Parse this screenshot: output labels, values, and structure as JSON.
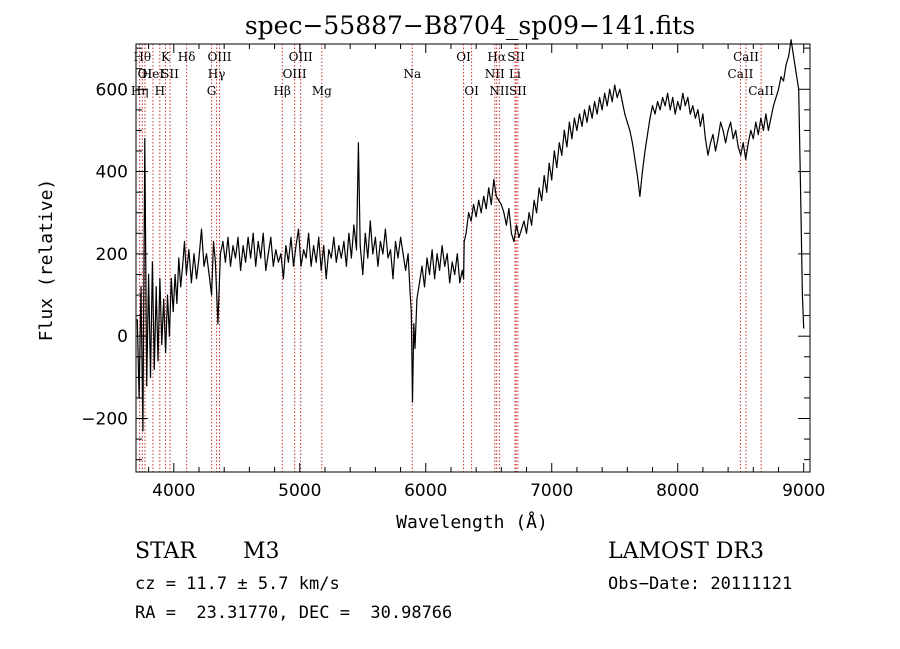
{
  "chart_data": {
    "type": "line",
    "title": "spec−55887−B8704_sp09−141.fits",
    "xlabel": "Wavelength (Å)",
    "ylabel": "Flux (relative)",
    "xlim": [
      3700,
      9050
    ],
    "ylim": [
      -330,
      710
    ],
    "x_ticks": [
      4000,
      5000,
      6000,
      7000,
      8000,
      9000
    ],
    "x_tick_labels": [
      "4000",
      "5000",
      "6000",
      "7000",
      "8000",
      "9000"
    ],
    "y_ticks": [
      -200,
      0,
      200,
      400,
      600
    ],
    "y_tick_labels": [
      "−200",
      "0",
      "200",
      "400",
      "600"
    ],
    "grid": false,
    "series": [
      {
        "name": "flux",
        "color": "#000000",
        "points": [
          [
            3710,
            40
          ],
          [
            3725,
            -150
          ],
          [
            3740,
            120
          ],
          [
            3755,
            -230
          ],
          [
            3770,
            480
          ],
          [
            3785,
            -120
          ],
          [
            3800,
            150
          ],
          [
            3815,
            -100
          ],
          [
            3830,
            180
          ],
          [
            3845,
            -80
          ],
          [
            3860,
            120
          ],
          [
            3875,
            -60
          ],
          [
            3890,
            140
          ],
          [
            3905,
            -20
          ],
          [
            3920,
            90
          ],
          [
            3935,
            -40
          ],
          [
            3950,
            100
          ],
          [
            3965,
            0
          ],
          [
            3980,
            140
          ],
          [
            3995,
            60
          ],
          [
            4010,
            150
          ],
          [
            4025,
            80
          ],
          [
            4040,
            190
          ],
          [
            4055,
            120
          ],
          [
            4070,
            170
          ],
          [
            4085,
            230
          ],
          [
            4100,
            150
          ],
          [
            4120,
            210
          ],
          [
            4140,
            130
          ],
          [
            4160,
            200
          ],
          [
            4180,
            140
          ],
          [
            4200,
            190
          ],
          [
            4220,
            260
          ],
          [
            4240,
            170
          ],
          [
            4260,
            200
          ],
          [
            4280,
            150
          ],
          [
            4300,
            100
          ],
          [
            4315,
            230
          ],
          [
            4330,
            180
          ],
          [
            4350,
            30
          ],
          [
            4370,
            200
          ],
          [
            4390,
            230
          ],
          [
            4410,
            180
          ],
          [
            4430,
            240
          ],
          [
            4450,
            170
          ],
          [
            4470,
            220
          ],
          [
            4490,
            190
          ],
          [
            4510,
            240
          ],
          [
            4530,
            160
          ],
          [
            4550,
            220
          ],
          [
            4570,
            180
          ],
          [
            4590,
            240
          ],
          [
            4610,
            190
          ],
          [
            4630,
            250
          ],
          [
            4650,
            170
          ],
          [
            4670,
            230
          ],
          [
            4690,
            190
          ],
          [
            4710,
            250
          ],
          [
            4730,
            160
          ],
          [
            4750,
            200
          ],
          [
            4770,
            240
          ],
          [
            4790,
            170
          ],
          [
            4810,
            210
          ],
          [
            4830,
            180
          ],
          [
            4850,
            200
          ],
          [
            4870,
            140
          ],
          [
            4890,
            220
          ],
          [
            4910,
            180
          ],
          [
            4930,
            240
          ],
          [
            4950,
            170
          ],
          [
            4970,
            220
          ],
          [
            4990,
            260
          ],
          [
            5010,
            170
          ],
          [
            5030,
            210
          ],
          [
            5050,
            190
          ],
          [
            5070,
            250
          ],
          [
            5090,
            170
          ],
          [
            5110,
            220
          ],
          [
            5130,
            180
          ],
          [
            5150,
            240
          ],
          [
            5170,
            160
          ],
          [
            5190,
            220
          ],
          [
            5210,
            140
          ],
          [
            5230,
            210
          ],
          [
            5250,
            190
          ],
          [
            5270,
            240
          ],
          [
            5290,
            180
          ],
          [
            5310,
            220
          ],
          [
            5330,
            190
          ],
          [
            5350,
            230
          ],
          [
            5370,
            170
          ],
          [
            5390,
            250
          ],
          [
            5410,
            190
          ],
          [
            5430,
            270
          ],
          [
            5450,
            210
          ],
          [
            5465,
            470
          ],
          [
            5480,
            220
          ],
          [
            5500,
            150
          ],
          [
            5520,
            250
          ],
          [
            5540,
            190
          ],
          [
            5560,
            280
          ],
          [
            5580,
            200
          ],
          [
            5600,
            240
          ],
          [
            5620,
            170
          ],
          [
            5640,
            230
          ],
          [
            5660,
            200
          ],
          [
            5680,
            260
          ],
          [
            5700,
            190
          ],
          [
            5720,
            210
          ],
          [
            5740,
            140
          ],
          [
            5760,
            230
          ],
          [
            5780,
            190
          ],
          [
            5800,
            240
          ],
          [
            5820,
            200
          ],
          [
            5840,
            160
          ],
          [
            5860,
            200
          ],
          [
            5875,
            110
          ],
          [
            5885,
            60
          ],
          [
            5895,
            -160
          ],
          [
            5905,
            30
          ],
          [
            5915,
            -30
          ],
          [
            5930,
            90
          ],
          [
            5950,
            130
          ],
          [
            5970,
            170
          ],
          [
            5990,
            120
          ],
          [
            6010,
            190
          ],
          [
            6030,
            150
          ],
          [
            6050,
            210
          ],
          [
            6070,
            140
          ],
          [
            6090,
            200
          ],
          [
            6110,
            160
          ],
          [
            6130,
            220
          ],
          [
            6150,
            170
          ],
          [
            6170,
            200
          ],
          [
            6190,
            130
          ],
          [
            6210,
            180
          ],
          [
            6230,
            150
          ],
          [
            6250,
            200
          ],
          [
            6270,
            130
          ],
          [
            6290,
            160
          ],
          [
            6300,
            140
          ],
          [
            6305,
            230
          ],
          [
            6320,
            250
          ],
          [
            6340,
            300
          ],
          [
            6360,
            280
          ],
          [
            6380,
            320
          ],
          [
            6400,
            290
          ],
          [
            6420,
            330
          ],
          [
            6440,
            300
          ],
          [
            6460,
            340
          ],
          [
            6480,
            310
          ],
          [
            6500,
            360
          ],
          [
            6520,
            320
          ],
          [
            6540,
            380
          ],
          [
            6560,
            340
          ],
          [
            6580,
            330
          ],
          [
            6600,
            320
          ],
          [
            6620,
            300
          ],
          [
            6640,
            270
          ],
          [
            6660,
            310
          ],
          [
            6680,
            250
          ],
          [
            6700,
            230
          ],
          [
            6720,
            270
          ],
          [
            6740,
            240
          ],
          [
            6760,
            260
          ],
          [
            6780,
            280
          ],
          [
            6800,
            250
          ],
          [
            6820,
            300
          ],
          [
            6840,
            270
          ],
          [
            6860,
            330
          ],
          [
            6880,
            300
          ],
          [
            6900,
            360
          ],
          [
            6920,
            330
          ],
          [
            6940,
            390
          ],
          [
            6960,
            350
          ],
          [
            6980,
            420
          ],
          [
            7000,
            380
          ],
          [
            7020,
            450
          ],
          [
            7040,
            410
          ],
          [
            7060,
            470
          ],
          [
            7080,
            440
          ],
          [
            7100,
            500
          ],
          [
            7120,
            460
          ],
          [
            7140,
            520
          ],
          [
            7160,
            480
          ],
          [
            7180,
            530
          ],
          [
            7200,
            500
          ],
          [
            7220,
            540
          ],
          [
            7240,
            510
          ],
          [
            7260,
            550
          ],
          [
            7280,
            520
          ],
          [
            7300,
            560
          ],
          [
            7320,
            530
          ],
          [
            7340,
            570
          ],
          [
            7360,
            540
          ],
          [
            7380,
            580
          ],
          [
            7400,
            550
          ],
          [
            7420,
            590
          ],
          [
            7440,
            560
          ],
          [
            7460,
            600
          ],
          [
            7480,
            570
          ],
          [
            7500,
            610
          ],
          [
            7520,
            580
          ],
          [
            7540,
            600
          ],
          [
            7560,
            570
          ],
          [
            7580,
            540
          ],
          [
            7600,
            520
          ],
          [
            7620,
            500
          ],
          [
            7640,
            470
          ],
          [
            7660,
            430
          ],
          [
            7680,
            390
          ],
          [
            7700,
            340
          ],
          [
            7720,
            400
          ],
          [
            7740,
            450
          ],
          [
            7760,
            490
          ],
          [
            7780,
            530
          ],
          [
            7800,
            560
          ],
          [
            7820,
            540
          ],
          [
            7840,
            570
          ],
          [
            7860,
            550
          ],
          [
            7880,
            580
          ],
          [
            7900,
            560
          ],
          [
            7920,
            590
          ],
          [
            7940,
            550
          ],
          [
            7960,
            580
          ],
          [
            7980,
            540
          ],
          [
            8000,
            570
          ],
          [
            8020,
            550
          ],
          [
            8040,
            590
          ],
          [
            8060,
            560
          ],
          [
            8080,
            580
          ],
          [
            8100,
            540
          ],
          [
            8120,
            560
          ],
          [
            8140,
            530
          ],
          [
            8160,
            550
          ],
          [
            8180,
            510
          ],
          [
            8200,
            540
          ],
          [
            8220,
            480
          ],
          [
            8240,
            440
          ],
          [
            8260,
            470
          ],
          [
            8280,
            490
          ],
          [
            8300,
            450
          ],
          [
            8320,
            480
          ],
          [
            8340,
            520
          ],
          [
            8360,
            500
          ],
          [
            8380,
            470
          ],
          [
            8400,
            500
          ],
          [
            8420,
            520
          ],
          [
            8440,
            480
          ],
          [
            8460,
            500
          ],
          [
            8480,
            460
          ],
          [
            8500,
            440
          ],
          [
            8520,
            470
          ],
          [
            8540,
            430
          ],
          [
            8560,
            470
          ],
          [
            8580,
            500
          ],
          [
            8600,
            480
          ],
          [
            8620,
            520
          ],
          [
            8640,
            490
          ],
          [
            8660,
            530
          ],
          [
            8680,
            500
          ],
          [
            8700,
            540
          ],
          [
            8720,
            500
          ],
          [
            8740,
            530
          ],
          [
            8760,
            560
          ],
          [
            8780,
            580
          ],
          [
            8800,
            600
          ],
          [
            8820,
            630
          ],
          [
            8840,
            620
          ],
          [
            8860,
            660
          ],
          [
            8880,
            680
          ],
          [
            8900,
            720
          ],
          [
            8920,
            680
          ],
          [
            8940,
            640
          ],
          [
            8960,
            600
          ],
          [
            8975,
            350
          ],
          [
            8990,
            100
          ],
          [
            9000,
            20
          ]
        ]
      }
    ],
    "line_color": "#cc3333",
    "lines": [
      {
        "x": 3729,
        "row": 3,
        "label": "Hη"
      },
      {
        "x": 3750,
        "row": 1,
        "label": "Hθ"
      },
      {
        "x": 3771,
        "row": 2,
        "label": "OI"
      },
      {
        "x": 3835,
        "row": 2,
        "label": "HeI"
      },
      {
        "x": 3889,
        "row": 3,
        "label": "H"
      },
      {
        "x": 3934,
        "row": 1,
        "label": "K"
      },
      {
        "x": 3970,
        "row": 2,
        "label": "SII"
      },
      {
        "x": 4102,
        "row": 1,
        "label": "Hδ"
      },
      {
        "x": 4300,
        "row": 3,
        "label": "G"
      },
      {
        "x": 4340,
        "row": 2,
        "label": "Hγ"
      },
      {
        "x": 4363,
        "row": 1,
        "label": "OIII"
      },
      {
        "x": 4861,
        "row": 3,
        "label": "Hβ"
      },
      {
        "x": 4959,
        "row": 2,
        "label": "OIII"
      },
      {
        "x": 5007,
        "row": 1,
        "label": "OIII"
      },
      {
        "x": 5175,
        "row": 3,
        "label": "Mg"
      },
      {
        "x": 5893,
        "row": 2,
        "label": "Na"
      },
      {
        "x": 6300,
        "row": 1,
        "label": "OI"
      },
      {
        "x": 6364,
        "row": 3,
        "label": "OI"
      },
      {
        "x": 6548,
        "row": 2,
        "label": "NII"
      },
      {
        "x": 6563,
        "row": 1,
        "label": "Hα"
      },
      {
        "x": 6584,
        "row": 3,
        "label": "NII"
      },
      {
        "x": 6708,
        "row": 2,
        "label": "Li"
      },
      {
        "x": 6717,
        "row": 1,
        "label": "SII"
      },
      {
        "x": 6731,
        "row": 3,
        "label": "SII"
      },
      {
        "x": 8498,
        "row": 2,
        "label": "CaII"
      },
      {
        "x": 8542,
        "row": 1,
        "label": "CaII"
      },
      {
        "x": 8662,
        "row": 3,
        "label": "CaII"
      }
    ]
  },
  "info": {
    "class_label": "STAR",
    "subclass": "M3",
    "survey": "LAMOST DR3",
    "cz": "cz = 11.7 ± 5.7 km/s",
    "obs_date": "Obs−Date: 20111121",
    "radec": "RA =  23.31770, DEC =  30.98766"
  }
}
